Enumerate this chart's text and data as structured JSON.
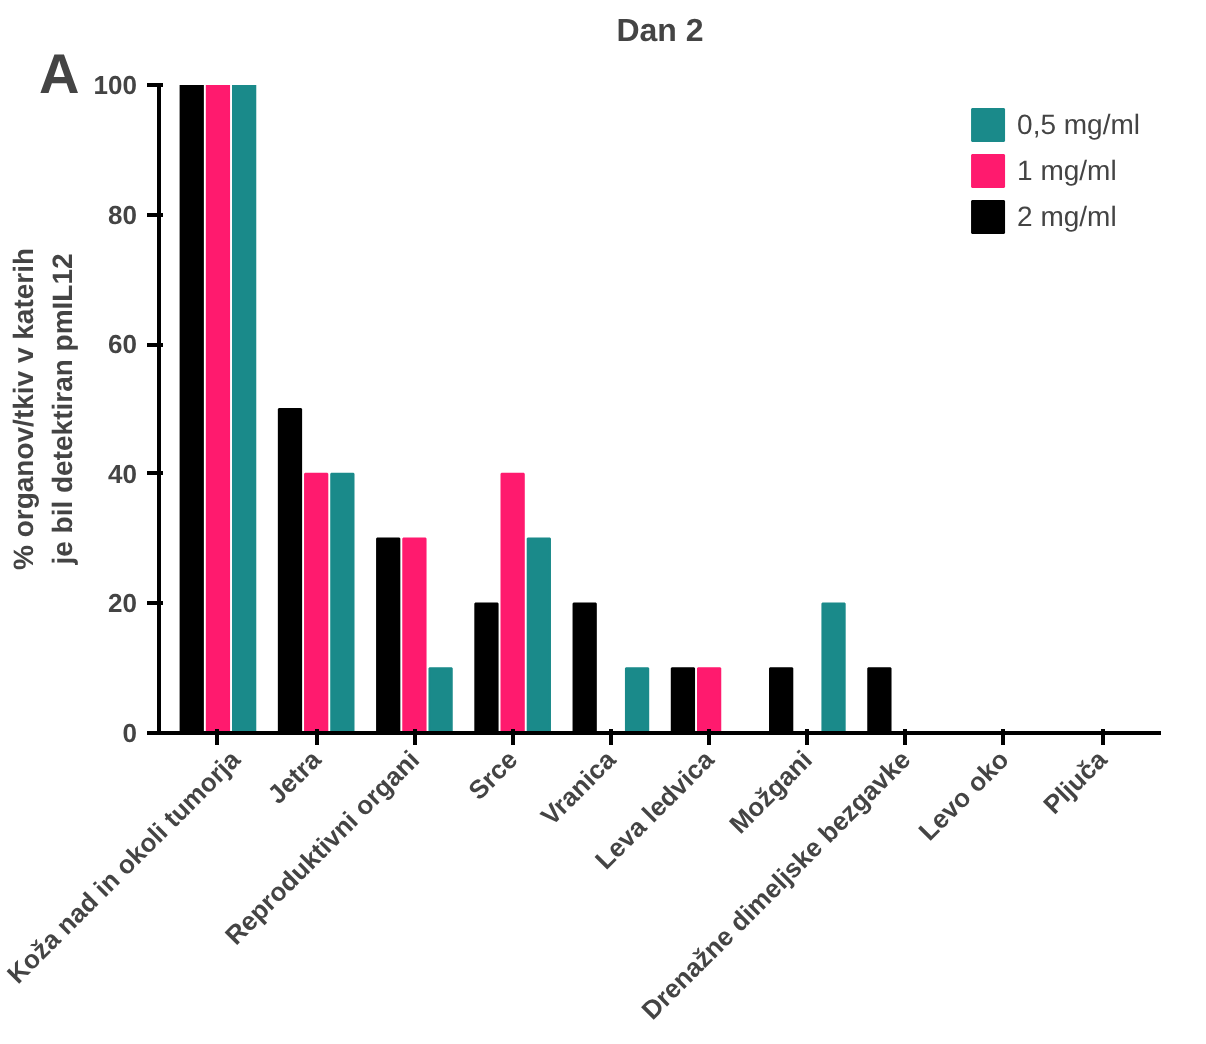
{
  "chart_data": {
    "type": "bar",
    "title": "Dan 2",
    "ylabel": "% organov/tkiv v katerih\nje bil detektiran pmIL12",
    "annotations": [
      "A"
    ],
    "categories": [
      "Koža nad in okoli tumorja",
      "Jetra",
      "Reproduktivni organi",
      "Srce",
      "Vranica",
      "Leva ledvica",
      "Možgani",
      "Drenažne dimeljske bezgavke",
      "Levo oko",
      "Pljuča"
    ],
    "series": [
      {
        "name": "0,5 mg/ml",
        "color": "#1a8a8a",
        "values": [
          100,
          40,
          10,
          30,
          10,
          0,
          20,
          0,
          0,
          0
        ]
      },
      {
        "name": "1 mg/ml",
        "color": "#ff1a6e",
        "values": [
          100,
          40,
          30,
          40,
          0,
          10,
          0,
          0,
          0,
          0
        ]
      },
      {
        "name": "2 mg/ml",
        "color": "#000000",
        "values": [
          100,
          50,
          30,
          20,
          20,
          10,
          10,
          10,
          0,
          0
        ]
      }
    ],
    "ylim": [
      0,
      100
    ],
    "yticks": [
      0,
      20,
      40,
      60,
      80,
      100
    ],
    "grid": false,
    "legend": "top right"
  }
}
